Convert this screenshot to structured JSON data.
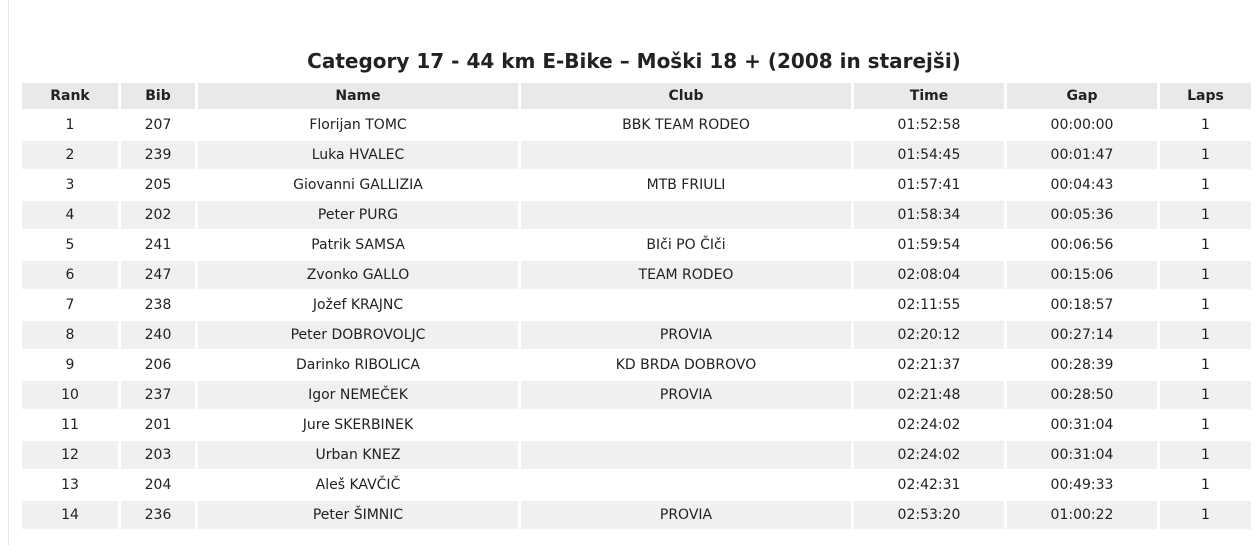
{
  "title": "Category 17 - 44 km E-Bike – Moški 18 + (2008 in starejši)",
  "columns": {
    "rank": "Rank",
    "bib": "Bib",
    "name": "Name",
    "club": "Club",
    "time": "Time",
    "gap": "Gap",
    "laps": "Laps"
  },
  "rows": [
    {
      "rank": "1",
      "bib": "207",
      "name": "Florijan TOMC",
      "club": "BBK TEAM RODEO",
      "time": "01:52:58",
      "gap": "00:00:00",
      "laps": "1"
    },
    {
      "rank": "2",
      "bib": "239",
      "name": "Luka HVALEC",
      "club": "",
      "time": "01:54:45",
      "gap": "00:01:47",
      "laps": "1"
    },
    {
      "rank": "3",
      "bib": "205",
      "name": "Giovanni GALLIZIA",
      "club": "MTB FRIULI",
      "time": "01:57:41",
      "gap": "00:04:43",
      "laps": "1"
    },
    {
      "rank": "4",
      "bib": "202",
      "name": "Peter PURG",
      "club": "",
      "time": "01:58:34",
      "gap": "00:05:36",
      "laps": "1"
    },
    {
      "rank": "5",
      "bib": "241",
      "name": "Patrik SAMSA",
      "club": "BIči PO ČIči",
      "time": "01:59:54",
      "gap": "00:06:56",
      "laps": "1"
    },
    {
      "rank": "6",
      "bib": "247",
      "name": "Zvonko GALLO",
      "club": "TEAM RODEO",
      "time": "02:08:04",
      "gap": "00:15:06",
      "laps": "1"
    },
    {
      "rank": "7",
      "bib": "238",
      "name": "Jožef KRAJNC",
      "club": "",
      "time": "02:11:55",
      "gap": "00:18:57",
      "laps": "1"
    },
    {
      "rank": "8",
      "bib": "240",
      "name": "Peter DOBROVOLJC",
      "club": "PROVIA",
      "time": "02:20:12",
      "gap": "00:27:14",
      "laps": "1"
    },
    {
      "rank": "9",
      "bib": "206",
      "name": "Darinko RIBOLICA",
      "club": "KD BRDA DOBROVO",
      "time": "02:21:37",
      "gap": "00:28:39",
      "laps": "1"
    },
    {
      "rank": "10",
      "bib": "237",
      "name": "Igor NEMEČEK",
      "club": "PROVIA",
      "time": "02:21:48",
      "gap": "00:28:50",
      "laps": "1"
    },
    {
      "rank": "11",
      "bib": "201",
      "name": "Jure SKERBINEK",
      "club": "",
      "time": "02:24:02",
      "gap": "00:31:04",
      "laps": "1"
    },
    {
      "rank": "12",
      "bib": "203",
      "name": "Urban KNEZ",
      "club": "",
      "time": "02:24:02",
      "gap": "00:31:04",
      "laps": "1"
    },
    {
      "rank": "13",
      "bib": "204",
      "name": "Aleš KAVČIČ",
      "club": "",
      "time": "02:42:31",
      "gap": "00:49:33",
      "laps": "1"
    },
    {
      "rank": "14",
      "bib": "236",
      "name": "Peter ŠIMNIC",
      "club": "PROVIA",
      "time": "02:53:20",
      "gap": "01:00:22",
      "laps": "1"
    }
  ],
  "colors": {
    "header_bg": "#e9e9e9",
    "stripe_bg": "#f0f0f0",
    "text": "#222222"
  }
}
